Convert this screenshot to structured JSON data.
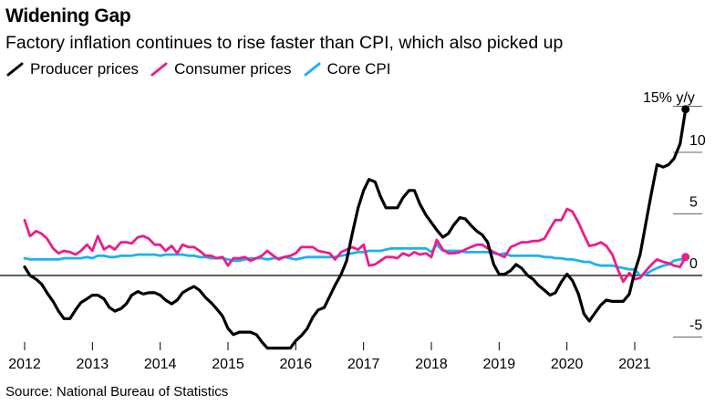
{
  "title": "Widening Gap",
  "subtitle": "Factory inflation continues to rise faster than CPI, which also picked up",
  "source": "Source: National Bureau of Statistics",
  "chart_data": {
    "type": "line",
    "unit_label": "15% y/y",
    "ylim": [
      -6.5,
      15
    ],
    "xlim": [
      2012.0,
      2021.8
    ],
    "yticks": [
      -5,
      0,
      5,
      10
    ],
    "ytick_labels": [
      "-5",
      "0",
      "5",
      "10"
    ],
    "xticks": [
      2012,
      2013,
      2014,
      2015,
      2016,
      2017,
      2018,
      2019,
      2020,
      2021
    ],
    "xtick_labels": [
      "2012",
      "2013",
      "2014",
      "2015",
      "2016",
      "2017",
      "2018",
      "2019",
      "2020",
      "2021"
    ],
    "legend_position": "top-left",
    "series": [
      {
        "name": "Producer prices",
        "color": "#000000",
        "end_marker": true,
        "x": [
          2012.0,
          2012.08,
          2012.17,
          2012.25,
          2012.33,
          2012.42,
          2012.5,
          2012.58,
          2012.67,
          2012.75,
          2012.83,
          2012.92,
          2013.0,
          2013.08,
          2013.17,
          2013.25,
          2013.33,
          2013.42,
          2013.5,
          2013.58,
          2013.67,
          2013.75,
          2013.83,
          2013.92,
          2014.0,
          2014.08,
          2014.17,
          2014.25,
          2014.33,
          2014.42,
          2014.5,
          2014.58,
          2014.67,
          2014.75,
          2014.83,
          2014.92,
          2015.0,
          2015.08,
          2015.17,
          2015.25,
          2015.33,
          2015.42,
          2015.5,
          2015.58,
          2015.67,
          2015.75,
          2015.83,
          2015.92,
          2016.0,
          2016.08,
          2016.17,
          2016.25,
          2016.33,
          2016.42,
          2016.5,
          2016.58,
          2016.67,
          2016.75,
          2016.83,
          2016.92,
          2017.0,
          2017.08,
          2017.17,
          2017.25,
          2017.33,
          2017.42,
          2017.5,
          2017.58,
          2017.67,
          2017.75,
          2017.83,
          2017.92,
          2018.0,
          2018.08,
          2018.17,
          2018.25,
          2018.33,
          2018.42,
          2018.5,
          2018.58,
          2018.67,
          2018.75,
          2018.83,
          2018.92,
          2019.0,
          2019.08,
          2019.17,
          2019.25,
          2019.33,
          2019.42,
          2019.5,
          2019.58,
          2019.67,
          2019.75,
          2019.83,
          2019.92,
          2020.0,
          2020.08,
          2020.17,
          2020.25,
          2020.33,
          2020.42,
          2020.5,
          2020.58,
          2020.67,
          2020.75,
          2020.83,
          2020.92,
          2021.0,
          2021.08,
          2021.17,
          2021.25,
          2021.33,
          2021.42,
          2021.5,
          2021.58,
          2021.67,
          2021.75
        ],
        "values": [
          0.7,
          0.0,
          -0.3,
          -0.7,
          -1.4,
          -2.1,
          -2.9,
          -3.5,
          -3.5,
          -2.8,
          -2.2,
          -1.9,
          -1.6,
          -1.6,
          -1.9,
          -2.6,
          -2.9,
          -2.7,
          -2.3,
          -1.6,
          -1.3,
          -1.5,
          -1.4,
          -1.4,
          -1.6,
          -2.0,
          -2.3,
          -2.0,
          -1.4,
          -1.1,
          -0.9,
          -1.2,
          -1.8,
          -2.2,
          -2.7,
          -3.3,
          -4.3,
          -4.8,
          -4.6,
          -4.6,
          -4.6,
          -4.8,
          -5.4,
          -5.9,
          -5.9,
          -5.9,
          -5.9,
          -5.9,
          -5.3,
          -4.9,
          -4.3,
          -3.4,
          -2.8,
          -2.6,
          -1.7,
          -0.8,
          0.1,
          1.2,
          3.3,
          5.5,
          6.9,
          7.8,
          7.6,
          6.4,
          5.5,
          5.5,
          5.5,
          6.3,
          6.9,
          6.9,
          5.8,
          4.9,
          4.3,
          3.7,
          3.1,
          3.4,
          4.1,
          4.7,
          4.6,
          4.1,
          3.6,
          3.3,
          2.7,
          0.9,
          0.1,
          0.1,
          0.4,
          0.9,
          0.6,
          0.0,
          -0.3,
          -0.8,
          -1.2,
          -1.6,
          -1.4,
          -0.5,
          0.1,
          -0.4,
          -1.5,
          -3.1,
          -3.7,
          -3.0,
          -2.4,
          -2.0,
          -2.1,
          -2.1,
          -2.1,
          -1.5,
          0.3,
          1.7,
          4.4,
          6.8,
          9.0,
          8.8,
          9.0,
          9.5,
          10.7,
          13.5
        ]
      },
      {
        "name": "Consumer prices",
        "color": "#ee1b8a",
        "end_marker": true,
        "x": [
          2012.0,
          2012.08,
          2012.17,
          2012.25,
          2012.33,
          2012.42,
          2012.5,
          2012.58,
          2012.67,
          2012.75,
          2012.83,
          2012.92,
          2013.0,
          2013.08,
          2013.17,
          2013.25,
          2013.33,
          2013.42,
          2013.5,
          2013.58,
          2013.67,
          2013.75,
          2013.83,
          2013.92,
          2014.0,
          2014.08,
          2014.17,
          2014.25,
          2014.33,
          2014.42,
          2014.5,
          2014.58,
          2014.67,
          2014.75,
          2014.83,
          2014.92,
          2015.0,
          2015.08,
          2015.17,
          2015.25,
          2015.33,
          2015.42,
          2015.5,
          2015.58,
          2015.67,
          2015.75,
          2015.83,
          2015.92,
          2016.0,
          2016.08,
          2016.17,
          2016.25,
          2016.33,
          2016.42,
          2016.5,
          2016.58,
          2016.67,
          2016.75,
          2016.83,
          2016.92,
          2017.0,
          2017.08,
          2017.17,
          2017.25,
          2017.33,
          2017.42,
          2017.5,
          2017.58,
          2017.67,
          2017.75,
          2017.83,
          2017.92,
          2018.0,
          2018.08,
          2018.17,
          2018.25,
          2018.33,
          2018.42,
          2018.5,
          2018.58,
          2018.67,
          2018.75,
          2018.83,
          2018.92,
          2019.0,
          2019.08,
          2019.17,
          2019.25,
          2019.33,
          2019.42,
          2019.5,
          2019.58,
          2019.67,
          2019.75,
          2019.83,
          2019.92,
          2020.0,
          2020.08,
          2020.17,
          2020.25,
          2020.33,
          2020.42,
          2020.5,
          2020.58,
          2020.67,
          2020.75,
          2020.83,
          2020.92,
          2021.0,
          2021.08,
          2021.17,
          2021.25,
          2021.33,
          2021.42,
          2021.5,
          2021.58,
          2021.67,
          2021.75
        ],
        "values": [
          4.5,
          3.2,
          3.6,
          3.4,
          3.0,
          2.2,
          1.8,
          2.0,
          1.9,
          1.7,
          2.0,
          2.5,
          2.0,
          3.2,
          2.1,
          2.4,
          2.1,
          2.7,
          2.7,
          2.6,
          3.1,
          3.2,
          3.0,
          2.5,
          2.5,
          2.0,
          2.4,
          1.8,
          2.5,
          2.3,
          2.3,
          2.0,
          1.6,
          1.6,
          1.4,
          1.5,
          0.8,
          1.4,
          1.4,
          1.5,
          1.2,
          1.4,
          1.6,
          2.0,
          1.6,
          1.3,
          1.5,
          1.6,
          1.8,
          2.3,
          2.3,
          2.3,
          2.0,
          1.9,
          1.8,
          1.3,
          1.9,
          2.1,
          2.3,
          2.1,
          2.5,
          0.8,
          0.9,
          1.2,
          1.5,
          1.5,
          1.4,
          1.8,
          1.6,
          1.9,
          1.7,
          1.8,
          1.5,
          2.9,
          2.1,
          1.8,
          1.8,
          1.9,
          2.1,
          2.3,
          2.5,
          2.5,
          2.2,
          1.9,
          1.7,
          1.5,
          2.3,
          2.5,
          2.7,
          2.7,
          2.8,
          2.8,
          3.0,
          3.8,
          4.5,
          4.5,
          5.4,
          5.2,
          4.3,
          3.3,
          2.4,
          2.5,
          2.7,
          2.4,
          1.7,
          0.5,
          -0.5,
          0.2,
          -0.3,
          -0.2,
          0.4,
          0.9,
          1.3,
          1.1,
          1.0,
          0.8,
          0.7,
          1.5
        ]
      },
      {
        "name": "Core CPI",
        "color": "#1ab2f0",
        "end_marker": false,
        "x": [
          2012.0,
          2012.08,
          2012.17,
          2012.25,
          2012.33,
          2012.42,
          2012.5,
          2012.58,
          2012.67,
          2012.75,
          2012.83,
          2012.92,
          2013.0,
          2013.08,
          2013.17,
          2013.25,
          2013.33,
          2013.42,
          2013.5,
          2013.58,
          2013.67,
          2013.75,
          2013.83,
          2013.92,
          2014.0,
          2014.08,
          2014.17,
          2014.25,
          2014.33,
          2014.42,
          2014.5,
          2014.58,
          2014.67,
          2014.75,
          2014.83,
          2014.92,
          2015.0,
          2015.08,
          2015.17,
          2015.25,
          2015.33,
          2015.42,
          2015.5,
          2015.58,
          2015.67,
          2015.75,
          2015.83,
          2015.92,
          2016.0,
          2016.08,
          2016.17,
          2016.25,
          2016.33,
          2016.42,
          2016.5,
          2016.58,
          2016.67,
          2016.75,
          2016.83,
          2016.92,
          2017.0,
          2017.08,
          2017.17,
          2017.25,
          2017.33,
          2017.42,
          2017.5,
          2017.58,
          2017.67,
          2017.75,
          2017.83,
          2017.92,
          2018.0,
          2018.08,
          2018.17,
          2018.25,
          2018.33,
          2018.42,
          2018.5,
          2018.58,
          2018.67,
          2018.75,
          2018.83,
          2018.92,
          2019.0,
          2019.08,
          2019.17,
          2019.25,
          2019.33,
          2019.42,
          2019.5,
          2019.58,
          2019.67,
          2019.75,
          2019.83,
          2019.92,
          2020.0,
          2020.08,
          2020.17,
          2020.25,
          2020.33,
          2020.42,
          2020.5,
          2020.58,
          2020.67,
          2020.75,
          2020.83,
          2020.92,
          2021.0,
          2021.08,
          2021.17,
          2021.25,
          2021.33,
          2021.42,
          2021.5,
          2021.58,
          2021.67,
          2021.75
        ],
        "values": [
          1.4,
          1.3,
          1.3,
          1.3,
          1.3,
          1.3,
          1.3,
          1.4,
          1.4,
          1.4,
          1.4,
          1.5,
          1.4,
          1.6,
          1.6,
          1.5,
          1.5,
          1.6,
          1.6,
          1.6,
          1.7,
          1.7,
          1.7,
          1.7,
          1.6,
          1.7,
          1.7,
          1.7,
          1.7,
          1.6,
          1.6,
          1.5,
          1.5,
          1.4,
          1.4,
          1.4,
          1.3,
          1.2,
          1.2,
          1.3,
          1.4,
          1.4,
          1.4,
          1.3,
          1.4,
          1.4,
          1.5,
          1.4,
          1.3,
          1.4,
          1.5,
          1.5,
          1.5,
          1.5,
          1.5,
          1.5,
          1.6,
          1.7,
          1.8,
          1.9,
          1.9,
          2.0,
          2.0,
          2.0,
          2.1,
          2.2,
          2.2,
          2.2,
          2.2,
          2.2,
          2.2,
          2.2,
          1.9,
          2.5,
          2.0,
          2.0,
          2.0,
          2.0,
          1.9,
          1.9,
          1.9,
          1.9,
          1.9,
          1.8,
          1.7,
          1.8,
          1.6,
          1.6,
          1.6,
          1.6,
          1.6,
          1.6,
          1.5,
          1.5,
          1.4,
          1.4,
          1.3,
          1.3,
          1.2,
          1.1,
          1.1,
          0.9,
          0.8,
          0.8,
          0.8,
          0.7,
          0.6,
          0.5,
          0.5,
          0.0,
          0.1,
          0.4,
          0.6,
          0.8,
          0.9,
          1.2,
          1.3,
          1.3
        ]
      }
    ]
  }
}
